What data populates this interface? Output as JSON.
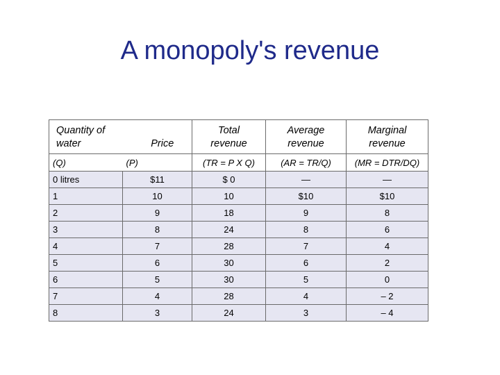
{
  "title": "A monopoly's revenue",
  "table": {
    "headers": {
      "quantity": [
        "Quantity of",
        "water"
      ],
      "price": [
        "Price"
      ],
      "total": [
        "Total",
        "revenue"
      ],
      "average": [
        "Average",
        "revenue"
      ],
      "marginal": [
        "Marginal",
        "revenue"
      ]
    },
    "symbols": [
      "(Q)",
      "(P)",
      "(TR = P X Q)",
      "(AR = TR/Q)",
      "(MR = DTR/DQ)"
    ],
    "rows": [
      [
        "0 litres",
        "$11",
        "$ 0",
        "—",
        "—"
      ],
      [
        "1",
        "10",
        "10",
        "$10",
        "$10"
      ],
      [
        "2",
        "9",
        "18",
        "9",
        "8"
      ],
      [
        "3",
        "8",
        "24",
        "8",
        "6"
      ],
      [
        "4",
        "7",
        "28",
        "7",
        "4"
      ],
      [
        "5",
        "6",
        "30",
        "6",
        "2"
      ],
      [
        "6",
        "5",
        "30",
        "5",
        "0"
      ],
      [
        "7",
        "4",
        "28",
        "4",
        "– 2"
      ],
      [
        "8",
        "3",
        "24",
        "3",
        "– 4"
      ]
    ]
  }
}
